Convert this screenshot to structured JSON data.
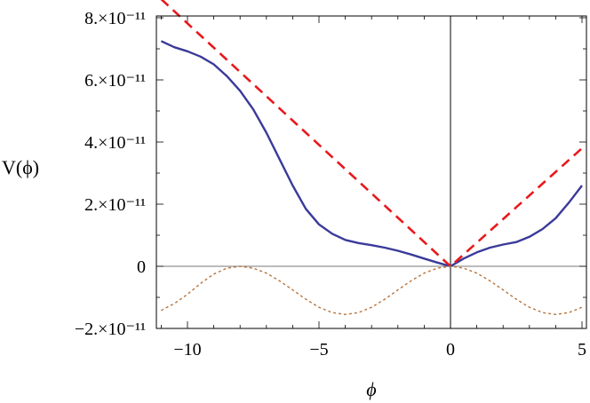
{
  "chart_data": {
    "type": "line",
    "title": "",
    "xlabel": "ϕ",
    "ylabel": "V(ϕ)",
    "xlim": [
      -11,
      5
    ],
    "ylim": [
      -2e-11,
      8e-11
    ],
    "grid": false,
    "legend": "none",
    "x_ticks": [
      {
        "value": -10,
        "label": "−10"
      },
      {
        "value": -5,
        "label": "−5"
      },
      {
        "value": 0,
        "label": "0"
      },
      {
        "value": 5,
        "label": "5"
      }
    ],
    "y_ticks": [
      {
        "value": -2e-11,
        "label": "−2.×10⁻¹¹"
      },
      {
        "value": 0,
        "label": "0"
      },
      {
        "value": 2e-11,
        "label": "2.×10⁻¹¹"
      },
      {
        "value": 4e-11,
        "label": "4.×10⁻¹¹"
      },
      {
        "value": 6e-11,
        "label": "6.×10⁻¹¹"
      },
      {
        "value": 8e-11,
        "label": "8.×10⁻¹¹"
      }
    ],
    "series": [
      {
        "style": "solid",
        "color": "#3a3a9a",
        "x": [
          -11,
          -10.5,
          -10,
          -9.5,
          -9,
          -8.5,
          -8,
          -7.5,
          -7,
          -6.5,
          -6,
          -5.5,
          -5,
          -4.5,
          -4,
          -3.5,
          -3,
          -2.5,
          -2,
          -1.5,
          -1,
          -0.5,
          0,
          0.5,
          1,
          1.5,
          2,
          2.5,
          3,
          3.5,
          4,
          4.5,
          5
        ],
        "values": [
          7.25e-11,
          7.05e-11,
          6.92e-11,
          6.75e-11,
          6.5e-11,
          6.12e-11,
          5.65e-11,
          5.05e-11,
          4.3e-11,
          3.45e-11,
          2.6e-11,
          1.85e-11,
          1.35e-11,
          1.05e-11,
          8.5e-12,
          7.5e-12,
          6.8e-12,
          6e-12,
          5e-12,
          3.8e-12,
          2.5e-12,
          1.2e-12,
          0,
          2.5e-12,
          4.5e-12,
          6e-12,
          7e-12,
          7.8e-12,
          9.5e-12,
          1.2e-11,
          1.55e-11,
          2.05e-11,
          2.6e-11
        ]
      },
      {
        "style": "dashed",
        "color": "#e8191c",
        "x": [
          -11,
          0,
          5
        ],
        "values": [
          8.6e-11,
          0,
          3.8e-11
        ]
      },
      {
        "style": "dotted",
        "color": "#b9733a",
        "x": [
          -11,
          -10.5,
          -10,
          -9.5,
          -9,
          -8.5,
          -8,
          -7.5,
          -7,
          -6.5,
          -6,
          -5.5,
          -5,
          -4.5,
          -4,
          -3.5,
          -3,
          -2.5,
          -2,
          -1.5,
          -1,
          -0.5,
          0,
          0.5,
          1,
          1.5,
          2,
          2.5,
          3,
          3.5,
          4,
          4.5,
          5
        ],
        "values": [
          -1.42e-11,
          -1.2e-11,
          -9e-12,
          -5.5e-12,
          -2.5e-12,
          -6e-13,
          0,
          -6e-13,
          -2.2e-12,
          -4.7e-12,
          -7.6e-12,
          -1.06e-11,
          -1.32e-11,
          -1.49e-11,
          -1.55e-11,
          -1.49e-11,
          -1.32e-11,
          -1.06e-11,
          -7.6e-12,
          -4.7e-12,
          -2.2e-12,
          -6e-13,
          0,
          -6e-13,
          -2.2e-12,
          -4.7e-12,
          -7.6e-12,
          -1.06e-11,
          -1.32e-11,
          -1.49e-11,
          -1.55e-11,
          -1.49e-11,
          -1.32e-11
        ]
      }
    ]
  }
}
